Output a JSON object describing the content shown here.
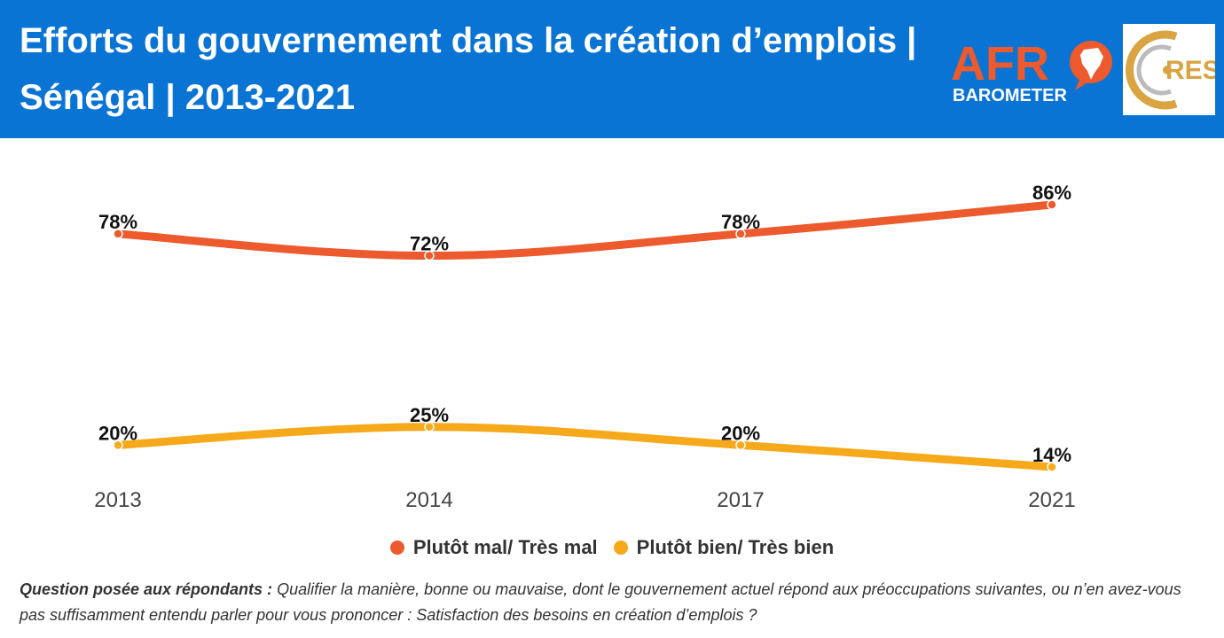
{
  "header": {
    "title": "Efforts du gouvernement dans la création d’emplois | Sénégal | 2013-2021"
  },
  "logos": {
    "afro_text": "AFR",
    "afro_sub": "BAROMETER",
    "cres_text": "RES"
  },
  "colors": {
    "header_bg": "#0a74d4",
    "series_bad": "#ec5a2d",
    "series_good": "#f5a91b"
  },
  "chart_data": {
    "type": "line",
    "categories": [
      "2013",
      "2014",
      "2017",
      "2021"
    ],
    "series": [
      {
        "name": "Plutôt mal/ Très mal",
        "values": [
          78,
          72,
          78,
          86
        ],
        "labels": [
          "78%",
          "72%",
          "78%",
          "86%"
        ],
        "color": "#ec5a2d"
      },
      {
        "name": "Plutôt bien/ Très bien",
        "values": [
          20,
          25,
          20,
          14
        ],
        "labels": [
          "20%",
          "25%",
          "20%",
          "14%"
        ],
        "color": "#f5a91b"
      }
    ],
    "ylim": [
      14,
      86
    ],
    "grid": false,
    "legend_position": "bottom-center"
  },
  "note": {
    "label": "Question posée aux répondants :",
    "text": "Qualifier la manière, bonne ou mauvaise, dont le gouvernement actuel répond aux préoccupations suivantes, ou n’en avez-vous pas suffisamment entendu parler pour vous prononcer : Satisfaction des besoins en création d’emplois ?"
  }
}
